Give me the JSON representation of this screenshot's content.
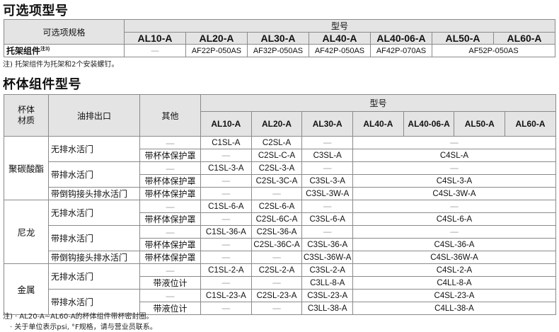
{
  "options": {
    "title": "可选项型号",
    "spec_header": "可选项规格",
    "model_header": "型号",
    "models": [
      "AL10-A",
      "AL20-A",
      "AL30-A",
      "AL40-A",
      "AL40-06-A",
      "AL50-A",
      "AL60-A"
    ],
    "row": {
      "label": "托架组件",
      "label_note": "注3)",
      "cells": [
        {
          "v": "—",
          "span": 1
        },
        {
          "v": "AF22P-050AS",
          "span": 1
        },
        {
          "v": "AF32P-050AS",
          "span": 1
        },
        {
          "v": "AF42P-050AS",
          "span": 1
        },
        {
          "v": "AF42P-070AS",
          "span": 1
        },
        {
          "v": "AF52P-050AS",
          "span": 2
        }
      ]
    },
    "note": "注) 托架组件为托架和2个安装螺钉。"
  },
  "bowl": {
    "title": "杯体组件型号",
    "headers": {
      "material": "杯体\n材质",
      "drain": "油排出口",
      "other": "其他",
      "model": "型号"
    },
    "models": [
      "AL10-A",
      "AL20-A",
      "AL30-A",
      "AL40-A",
      "AL40-06-A",
      "AL50-A",
      "AL60-A"
    ],
    "rows": [
      {
        "mat": "聚碳酸酯",
        "matspan": 5,
        "drain": "无排水活门",
        "drainspan": 2,
        "other": "—",
        "cells": [
          {
            "v": "C1SL-A",
            "span": 1
          },
          {
            "v": "C2SL-A",
            "span": 1
          },
          {
            "v": "—",
            "span": 1
          },
          {
            "v": "—",
            "span": 4
          }
        ]
      },
      {
        "other": "带杯体保护罩",
        "cells": [
          {
            "v": "—",
            "span": 1
          },
          {
            "v": "C2SL-C-A",
            "span": 1
          },
          {
            "v": "C3SL-A",
            "span": 1
          },
          {
            "v": "C4SL-A",
            "span": 4
          }
        ]
      },
      {
        "drain": "带排水活门",
        "drainspan": 2,
        "other": "—",
        "cells": [
          {
            "v": "C1SL-3-A",
            "span": 1
          },
          {
            "v": "C2SL-3-A",
            "span": 1
          },
          {
            "v": "—",
            "span": 1
          },
          {
            "v": "—",
            "span": 4
          }
        ]
      },
      {
        "other": "带杯体保护罩",
        "cells": [
          {
            "v": "—",
            "span": 1
          },
          {
            "v": "C2SL-3C-A",
            "span": 1
          },
          {
            "v": "C3SL-3-A",
            "span": 1
          },
          {
            "v": "C4SL-3-A",
            "span": 4
          }
        ]
      },
      {
        "drain": "带倒钩接头排水活门",
        "drainspan": 1,
        "other": "带杯体保护罩",
        "cells": [
          {
            "v": "—",
            "span": 1
          },
          {
            "v": "—",
            "span": 1
          },
          {
            "v": "C3SL-3W-A",
            "span": 1
          },
          {
            "v": "C4SL-3W-A",
            "span": 4
          }
        ]
      },
      {
        "mat": "尼龙",
        "matspan": 5,
        "drain": "无排水活门",
        "drainspan": 2,
        "other": "—",
        "cells": [
          {
            "v": "C1SL-6-A",
            "span": 1
          },
          {
            "v": "C2SL-6-A",
            "span": 1
          },
          {
            "v": "—",
            "span": 1
          },
          {
            "v": "—",
            "span": 4
          }
        ]
      },
      {
        "other": "带杯体保护罩",
        "cells": [
          {
            "v": "—",
            "span": 1
          },
          {
            "v": "C2SL-6C-A",
            "span": 1
          },
          {
            "v": "C3SL-6-A",
            "span": 1
          },
          {
            "v": "C4SL-6-A",
            "span": 4
          }
        ]
      },
      {
        "drain": "带排水活门",
        "drainspan": 2,
        "other": "—",
        "cells": [
          {
            "v": "C1SL-36-A",
            "span": 1
          },
          {
            "v": "C2SL-36-A",
            "span": 1
          },
          {
            "v": "—",
            "span": 1
          },
          {
            "v": "—",
            "span": 4
          }
        ]
      },
      {
        "other": "带杯体保护罩",
        "cells": [
          {
            "v": "—",
            "span": 1
          },
          {
            "v": "C2SL-36C-A",
            "span": 1
          },
          {
            "v": "C3SL-36-A",
            "span": 1
          },
          {
            "v": "C4SL-36-A",
            "span": 4
          }
        ]
      },
      {
        "drain": "带倒钩接头排水活门",
        "drainspan": 1,
        "other": "带杯体保护罩",
        "cells": [
          {
            "v": "—",
            "span": 1
          },
          {
            "v": "—",
            "span": 1
          },
          {
            "v": "C3SL-36W-A",
            "span": 1
          },
          {
            "v": "C4SL-36W-A",
            "span": 4
          }
        ]
      },
      {
        "mat": "金属",
        "matspan": 4,
        "drain": "无排水活门",
        "drainspan": 2,
        "other": "—",
        "cells": [
          {
            "v": "C1SL-2-A",
            "span": 1
          },
          {
            "v": "C2SL-2-A",
            "span": 1
          },
          {
            "v": "C3SL-2-A",
            "span": 1
          },
          {
            "v": "C4SL-2-A",
            "span": 4
          }
        ]
      },
      {
        "other": "带液位计",
        "cells": [
          {
            "v": "—",
            "span": 1
          },
          {
            "v": "—",
            "span": 1
          },
          {
            "v": "C3LL-8-A",
            "span": 1
          },
          {
            "v": "C4LL-8-A",
            "span": 4
          }
        ]
      },
      {
        "drain": "带排水活门",
        "drainspan": 2,
        "other": "—",
        "cells": [
          {
            "v": "C1SL-23-A",
            "span": 1
          },
          {
            "v": "C2SL-23-A",
            "span": 1
          },
          {
            "v": "C3SL-23-A",
            "span": 1
          },
          {
            "v": "C4SL-23-A",
            "span": 4
          }
        ]
      },
      {
        "other": "带液位计",
        "cells": [
          {
            "v": "—",
            "span": 1
          },
          {
            "v": "—",
            "span": 1
          },
          {
            "v": "C3LL-38-A",
            "span": 1
          },
          {
            "v": "C4LL-38-A",
            "span": 4
          }
        ]
      }
    ],
    "notes": [
      "注) · AL20-A~AL60-A的杯体组件带杯密封圈。",
      "· 关于单位表示psi, °F规格，请与营业员联系。"
    ]
  }
}
